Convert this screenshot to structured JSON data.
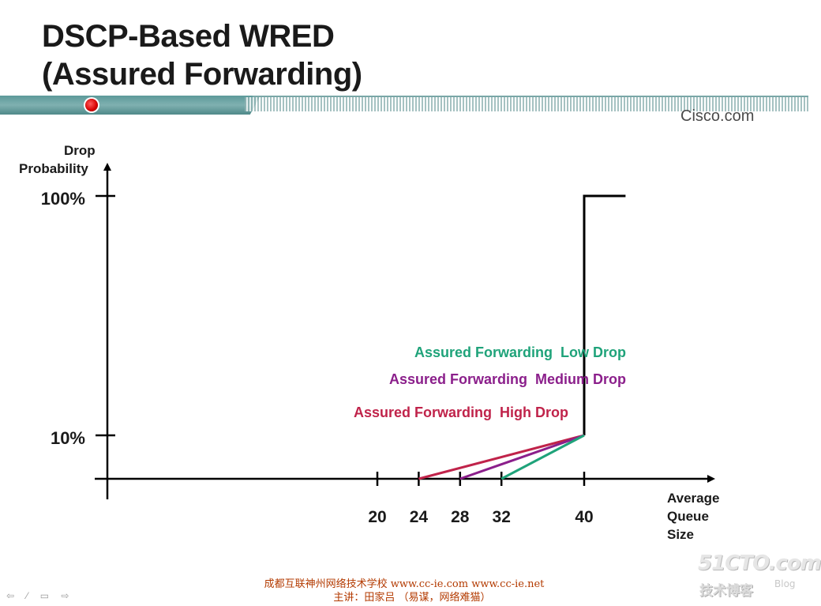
{
  "title": {
    "line1": "DSCP-Based WRED",
    "line2": "(Assured Forwarding)"
  },
  "brand": "Cisco.com",
  "chart_data": {
    "type": "line",
    "ylabel_line1": "Drop",
    "ylabel_line2": "Probability",
    "xlabel_lines": [
      "Average",
      "Queue",
      "Size"
    ],
    "x_ticks": [
      20,
      24,
      28,
      32,
      40
    ],
    "y_ticks": [
      {
        "value": 10,
        "label": "10%"
      },
      {
        "value": 100,
        "label": "100%"
      }
    ],
    "series": [
      {
        "name": "Assured Forwarding  High Drop",
        "color": "#c0234a",
        "points": [
          [
            24,
            0
          ],
          [
            40,
            10
          ]
        ]
      },
      {
        "name": "Assured Forwarding  Medium Drop",
        "color": "#8b1f8b",
        "points": [
          [
            28,
            0
          ],
          [
            40,
            10
          ]
        ]
      },
      {
        "name": "Assured Forwarding  Low Drop",
        "color": "#1fa37a",
        "points": [
          [
            32,
            0
          ],
          [
            40,
            10
          ]
        ]
      }
    ],
    "max_drop_line": {
      "color": "#000000",
      "points": [
        [
          40,
          10
        ],
        [
          40,
          100
        ],
        [
          44,
          100
        ]
      ]
    }
  },
  "footer": {
    "line1": "成都互联神州网络技术学校  www.cc-ie.com www.cc-ie.net",
    "line2": "主讲：田家吕 （易谋，网络难猫）"
  },
  "nav": {
    "label": "⇦ ⁄ ▭ ⇨"
  },
  "watermark": {
    "main": "51CTO.com",
    "sub": "技术博客",
    "blog": "Blog"
  }
}
